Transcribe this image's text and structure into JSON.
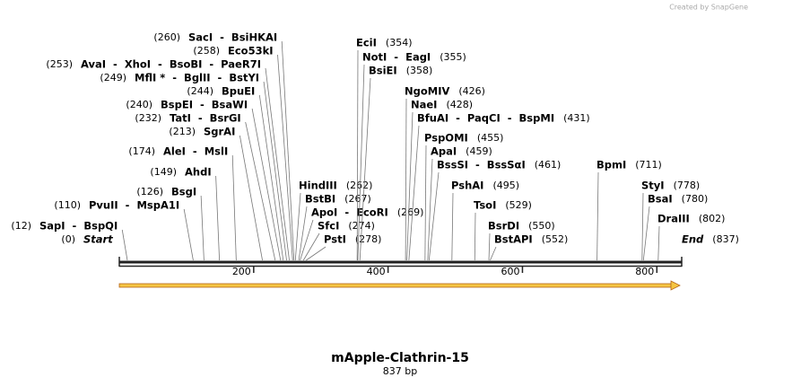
{
  "credit": "Created by SnapGene",
  "title": "mApple-Clathrin-15",
  "length": "837 bp",
  "ruler": [
    200,
    400,
    600,
    800
  ],
  "sites": [
    {
      "name": "SacI  -  BsiHKAI",
      "position": {
        "value": 260,
        "label": "(260)"
      }
    },
    {
      "name": "Eco53kI",
      "position": {
        "value": 258,
        "label": "(258)"
      }
    },
    {
      "name": "AvaI  -  XhoI  -  BsoBI  -  PaeR7I",
      "position": {
        "value": 253,
        "label": "(253)"
      }
    },
    {
      "name": "MflI *  -  BglII  -  BstYI",
      "position": {
        "value": 249,
        "label": "(249)"
      }
    },
    {
      "name": "BpuEI",
      "position": {
        "value": 244,
        "label": "(244)"
      }
    },
    {
      "name": "BspEI  -  BsaWI",
      "position": {
        "value": 240,
        "label": "(240)"
      }
    },
    {
      "name": "TatI  -  BsrGI",
      "position": {
        "value": 232,
        "label": "(232)"
      }
    },
    {
      "name": "SgrAI",
      "position": {
        "value": 213,
        "label": "(213)"
      }
    },
    {
      "name": "AleI  -  MslI",
      "position": {
        "value": 174,
        "label": "(174)"
      }
    },
    {
      "name": "AhdI",
      "position": {
        "value": 149,
        "label": "(149)"
      }
    },
    {
      "name": "BsgI",
      "position": {
        "value": 126,
        "label": "(126)"
      }
    },
    {
      "name": "PvuII  -  MspA1I",
      "position": {
        "value": 110,
        "label": "(110)"
      }
    },
    {
      "name": "SapI  -  BspQI",
      "position": {
        "value": 12,
        "label": "(12)"
      }
    },
    {
      "name": "Start",
      "position": {
        "value": 0,
        "label": "(0)"
      }
    },
    {
      "name": "HindIII",
      "position": {
        "value": 262,
        "label": "(262)"
      }
    },
    {
      "name": "BstBI",
      "position": {
        "value": 267,
        "label": "(267)"
      }
    },
    {
      "name": "ApoI  -  EcoRI",
      "position": {
        "value": 269,
        "label": "(269)"
      }
    },
    {
      "name": "SfcI",
      "position": {
        "value": 274,
        "label": "(274)"
      }
    },
    {
      "name": "PstI",
      "position": {
        "value": 278,
        "label": "(278)"
      }
    },
    {
      "name": "EciI",
      "position": {
        "value": 354,
        "label": "(354)"
      }
    },
    {
      "name": "NotI  -  EagI",
      "position": {
        "value": 355,
        "label": "(355)"
      }
    },
    {
      "name": "BsiEI",
      "position": {
        "value": 358,
        "label": "(358)"
      }
    },
    {
      "name": "NgoMIV",
      "position": {
        "value": 426,
        "label": "(426)"
      }
    },
    {
      "name": "NaeI",
      "position": {
        "value": 428,
        "label": "(428)"
      }
    },
    {
      "name": "BfuAI  -  PaqCI  -  BspMI",
      "position": {
        "value": 431,
        "label": "(431)"
      }
    },
    {
      "name": "PspOMI",
      "position": {
        "value": 455,
        "label": "(455)"
      }
    },
    {
      "name": "ApaI",
      "position": {
        "value": 459,
        "label": "(459)"
      }
    },
    {
      "name": "BssSI  -  BssSαI",
      "position": {
        "value": 461,
        "label": "(461)"
      }
    },
    {
      "name": "PshAI",
      "position": {
        "value": 495,
        "label": "(495)"
      }
    },
    {
      "name": "TsoI",
      "position": {
        "value": 529,
        "label": "(529)"
      }
    },
    {
      "name": "BsrDI",
      "position": {
        "value": 550,
        "label": "(550)"
      }
    },
    {
      "name": "BstAPI",
      "position": {
        "value": 552,
        "label": "(552)"
      }
    },
    {
      "name": "BpmI",
      "position": {
        "value": 711,
        "label": "(711)"
      }
    },
    {
      "name": "StyI",
      "position": {
        "value": 778,
        "label": "(778)"
      }
    },
    {
      "name": "BsaI",
      "position": {
        "value": 780,
        "label": "(780)"
      }
    },
    {
      "name": "DraIII",
      "position": {
        "value": 802,
        "label": "(802)"
      }
    },
    {
      "name": "End",
      "position": {
        "value": 837,
        "label": "(837)"
      }
    }
  ]
}
